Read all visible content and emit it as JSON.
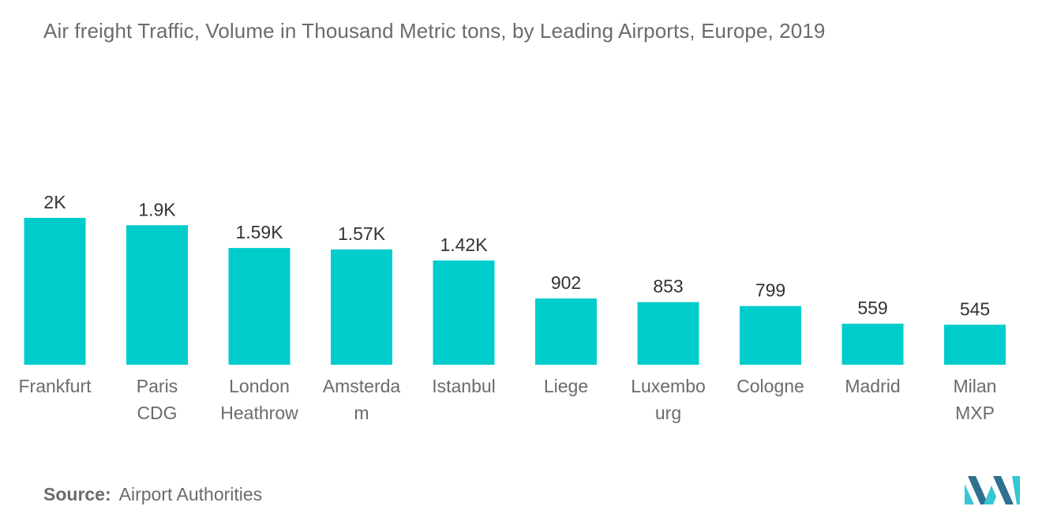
{
  "title": "Air freight Traffic, Volume in Thousand Metric tons, by Leading Airports, Europe, 2019",
  "source": {
    "label": "Source:",
    "text": "Airport Authorities"
  },
  "colors": {
    "bar": "#00cccc",
    "text": "#6b6b6b",
    "logo_dark": "#2f6f8f",
    "logo_light": "#37c6d4"
  },
  "chart_data": {
    "type": "bar",
    "title": "Air freight Traffic, Volume in Thousand Metric tons, by Leading Airports, Europe, 2019",
    "xlabel": "",
    "ylabel": "",
    "ylim": [
      0,
      2000
    ],
    "grid": false,
    "categories": [
      "Frankfurt",
      "Paris CDG",
      "London Heathrow",
      "Amsterdam",
      "Istanbul",
      "Liege",
      "Luxembourg",
      "Cologne",
      "Madrid",
      "Milan MXP"
    ],
    "category_label_lines": [
      [
        "Frankfurt"
      ],
      [
        "Paris",
        "CDG"
      ],
      [
        "London",
        "Heathrow"
      ],
      [
        "Amsterda",
        "m"
      ],
      [
        "Istanbul"
      ],
      [
        "Liege"
      ],
      [
        "Luxembo",
        "urg"
      ],
      [
        "Cologne"
      ],
      [
        "Madrid"
      ],
      [
        "Milan",
        "MXP"
      ]
    ],
    "values": [
      2000,
      1900,
      1590,
      1570,
      1420,
      902,
      853,
      799,
      559,
      545
    ],
    "data_labels": [
      "2K",
      "1.9K",
      "1.59K",
      "1.57K",
      "1.42K",
      "902",
      "853",
      "799",
      "559",
      "545"
    ]
  }
}
